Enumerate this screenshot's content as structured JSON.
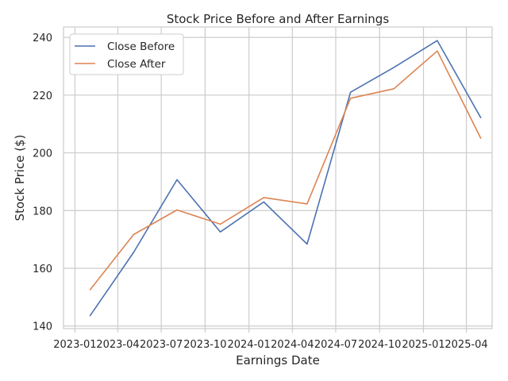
{
  "chart_data": {
    "type": "line",
    "title": "Stock Price Before and After Earnings",
    "xlabel": "Earnings Date",
    "ylabel": "Stock Price ($)",
    "x": [
      "2023-02-02",
      "2023-05-04",
      "2023-08-03",
      "2023-11-02",
      "2024-02-01",
      "2024-05-02",
      "2024-08-01",
      "2024-10-31",
      "2025-01-30",
      "2025-05-01"
    ],
    "series": [
      {
        "name": "Close Before",
        "color": "#4c72b0",
        "values": [
          143.6,
          165.5,
          190.7,
          172.6,
          183.0,
          168.4,
          221.0,
          229.6,
          238.9,
          212.2
        ]
      },
      {
        "name": "Close After",
        "color": "#dd8452",
        "values": [
          152.6,
          171.7,
          180.2,
          175.3,
          184.5,
          182.3,
          218.9,
          222.2,
          235.3,
          205.1
        ]
      }
    ],
    "xticks": [
      "2023-01-01",
      "2023-04-01",
      "2023-07-01",
      "2023-10-01",
      "2024-01-01",
      "2024-04-01",
      "2024-07-01",
      "2024-10-01",
      "2025-01-01",
      "2025-04-01"
    ],
    "xtick_labels": [
      "2023-01",
      "2023-04",
      "2023-07",
      "2023-10",
      "2024-01",
      "2024-04",
      "2024-07",
      "2024-10",
      "2025-01",
      "2025-04"
    ],
    "xlim": [
      "2022-12-08",
      "2025-05-25"
    ],
    "yticks": [
      140,
      160,
      180,
      200,
      220,
      240
    ],
    "ylim": [
      139.1,
      243.6
    ],
    "grid": true,
    "legend_position": "top-left"
  }
}
